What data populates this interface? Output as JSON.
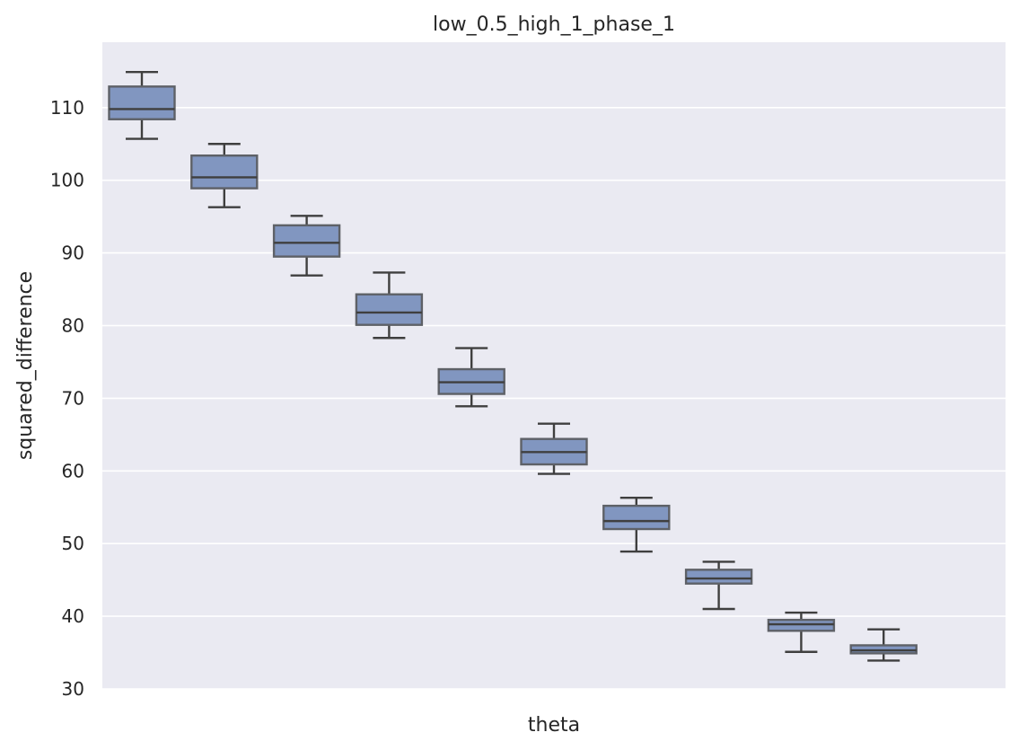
{
  "chart_data": {
    "type": "box",
    "title": "low_0.5_high_1_phase_1",
    "xlabel": "theta",
    "ylabel": "squared_difference",
    "ylim": [
      30,
      119
    ],
    "yticks": [
      30,
      40,
      50,
      60,
      70,
      80,
      90,
      100,
      110
    ],
    "grid": true,
    "x_tick_labels_visible": false,
    "colors": {
      "background": "#eaeaf2",
      "grid": "#ffffff",
      "box_fill": "#8196c0",
      "box_edge": "#5e6167",
      "whisker": "#3f3f3f",
      "median": "#3f3f3f",
      "text": "#262626"
    },
    "boxes": [
      {
        "whisker_low": 105.7,
        "q1": 108.4,
        "median": 109.8,
        "q3": 112.9,
        "whisker_high": 114.9
      },
      {
        "whisker_low": 96.3,
        "q1": 98.9,
        "median": 100.4,
        "q3": 103.4,
        "whisker_high": 105.0
      },
      {
        "whisker_low": 86.9,
        "q1": 89.5,
        "median": 91.4,
        "q3": 93.8,
        "whisker_high": 95.1
      },
      {
        "whisker_low": 78.3,
        "q1": 80.1,
        "median": 81.8,
        "q3": 84.3,
        "whisker_high": 87.3
      },
      {
        "whisker_low": 68.9,
        "q1": 70.6,
        "median": 72.2,
        "q3": 74.0,
        "whisker_high": 76.9
      },
      {
        "whisker_low": 59.6,
        "q1": 60.9,
        "median": 62.6,
        "q3": 64.4,
        "whisker_high": 66.5
      },
      {
        "whisker_low": 48.9,
        "q1": 52.0,
        "median": 53.1,
        "q3": 55.2,
        "whisker_high": 56.3
      },
      {
        "whisker_low": 41.0,
        "q1": 44.5,
        "median": 45.2,
        "q3": 46.4,
        "whisker_high": 47.5
      },
      {
        "whisker_low": 35.1,
        "q1": 38.0,
        "median": 38.9,
        "q3": 39.5,
        "whisker_high": 40.5
      },
      {
        "whisker_low": 33.9,
        "q1": 34.9,
        "median": 35.3,
        "q3": 36.0,
        "whisker_high": 38.2
      }
    ]
  }
}
